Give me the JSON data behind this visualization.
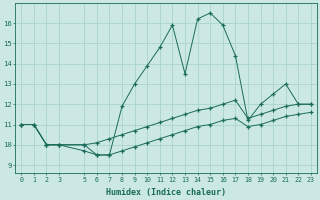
{
  "xlabel": "Humidex (Indice chaleur)",
  "bg_color": "#cce8e4",
  "line_color": "#1a6b5a",
  "grid_color": "#aad4ce",
  "x_values": [
    0,
    1,
    2,
    3,
    5,
    6,
    7,
    8,
    9,
    10,
    11,
    12,
    13,
    14,
    15,
    16,
    17,
    18,
    19,
    20,
    21,
    22,
    23
  ],
  "y_main": [
    11,
    11,
    10,
    10,
    10,
    9.5,
    9.5,
    11.9,
    13,
    13.9,
    14.8,
    15.9,
    13.5,
    16.2,
    16.5,
    15.9,
    14.4,
    11.2,
    12.0,
    12.5,
    13.0,
    12.0,
    12.0
  ],
  "y_upper": [
    11,
    11,
    10,
    10,
    10.0,
    10.1,
    10.3,
    10.5,
    10.7,
    10.9,
    11.1,
    11.3,
    11.5,
    11.7,
    11.8,
    12.0,
    12.2,
    11.3,
    11.5,
    11.7,
    11.9,
    12.0,
    12.0
  ],
  "y_lower": [
    11,
    11,
    10,
    10,
    9.7,
    9.5,
    9.5,
    9.7,
    9.9,
    10.1,
    10.3,
    10.5,
    10.7,
    10.9,
    11.0,
    11.2,
    11.3,
    10.9,
    11.0,
    11.2,
    11.4,
    11.5,
    11.6
  ],
  "x_ticks": [
    0,
    1,
    2,
    3,
    5,
    6,
    7,
    8,
    9,
    10,
    11,
    12,
    13,
    14,
    15,
    16,
    17,
    18,
    19,
    20,
    21,
    22,
    23
  ],
  "yticks": [
    9,
    10,
    11,
    12,
    13,
    14,
    15,
    16
  ],
  "ylim": [
    8.6,
    17.0
  ],
  "xlim": [
    -0.5,
    23.5
  ]
}
